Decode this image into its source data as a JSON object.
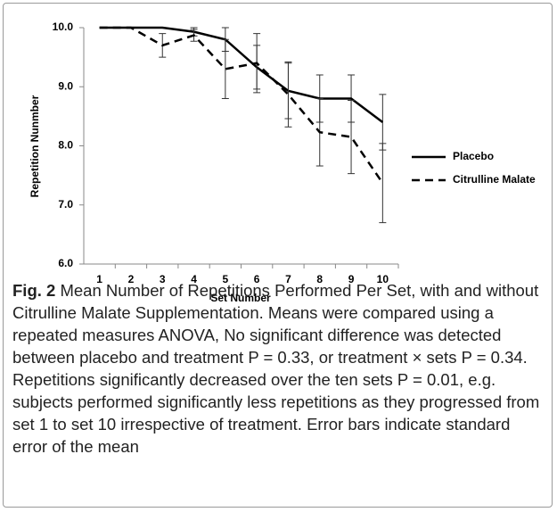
{
  "chart_data": {
    "type": "line",
    "y_label": "Repetition Nunmber",
    "x_label": "Set Number",
    "categories": [
      "1",
      "2",
      "3",
      "4",
      "5",
      "6",
      "7",
      "8",
      "9",
      "10"
    ],
    "series": [
      {
        "name": "Placebo",
        "color": "#000000",
        "dash": false,
        "values": [
          10,
          10,
          10,
          9.93,
          9.8,
          9.33,
          8.93,
          8.8,
          8.8,
          8.4
        ],
        "errors": [
          null,
          null,
          null,
          0.07,
          0.2,
          0.37,
          0.47,
          0.4,
          0.4,
          0.47
        ]
      },
      {
        "name": "Citrulline Malate",
        "color": "#000000",
        "dash": true,
        "values": [
          10,
          10,
          9.7,
          9.87,
          9.3,
          9.4,
          8.87,
          8.23,
          8.15,
          7.37
        ],
        "errors": [
          null,
          null,
          0.2,
          0.1,
          0.5,
          0.5,
          0.55,
          0.57,
          0.62,
          0.67
        ]
      }
    ],
    "ylim": [
      6,
      10
    ],
    "yticks": [
      {
        "value": 6,
        "label": "6.0"
      },
      {
        "value": 7,
        "label": "7.0"
      },
      {
        "value": 8,
        "label": "8.0"
      },
      {
        "value": 9,
        "label": "9.0"
      },
      {
        "value": 10,
        "label": "10.0"
      }
    ],
    "grid": false,
    "legend": "right"
  },
  "caption": {
    "label": "Fig. 2",
    "text": "Mean Number of Repetitions Performed Per Set, with and without Citrulline Malate Supplementation. Means were compared using a repeated measures ANOVA, No significant difference was detected between placebo and treatment P = 0.33, or treatment × sets P = 0.34. Repetitions significantly decreased over the ten sets P = 0.01, e.g. subjects performed significantly less repetitions as they progressed from set 1 to set 10 irrespective of treatment. Error bars indicate standard error of the mean"
  }
}
